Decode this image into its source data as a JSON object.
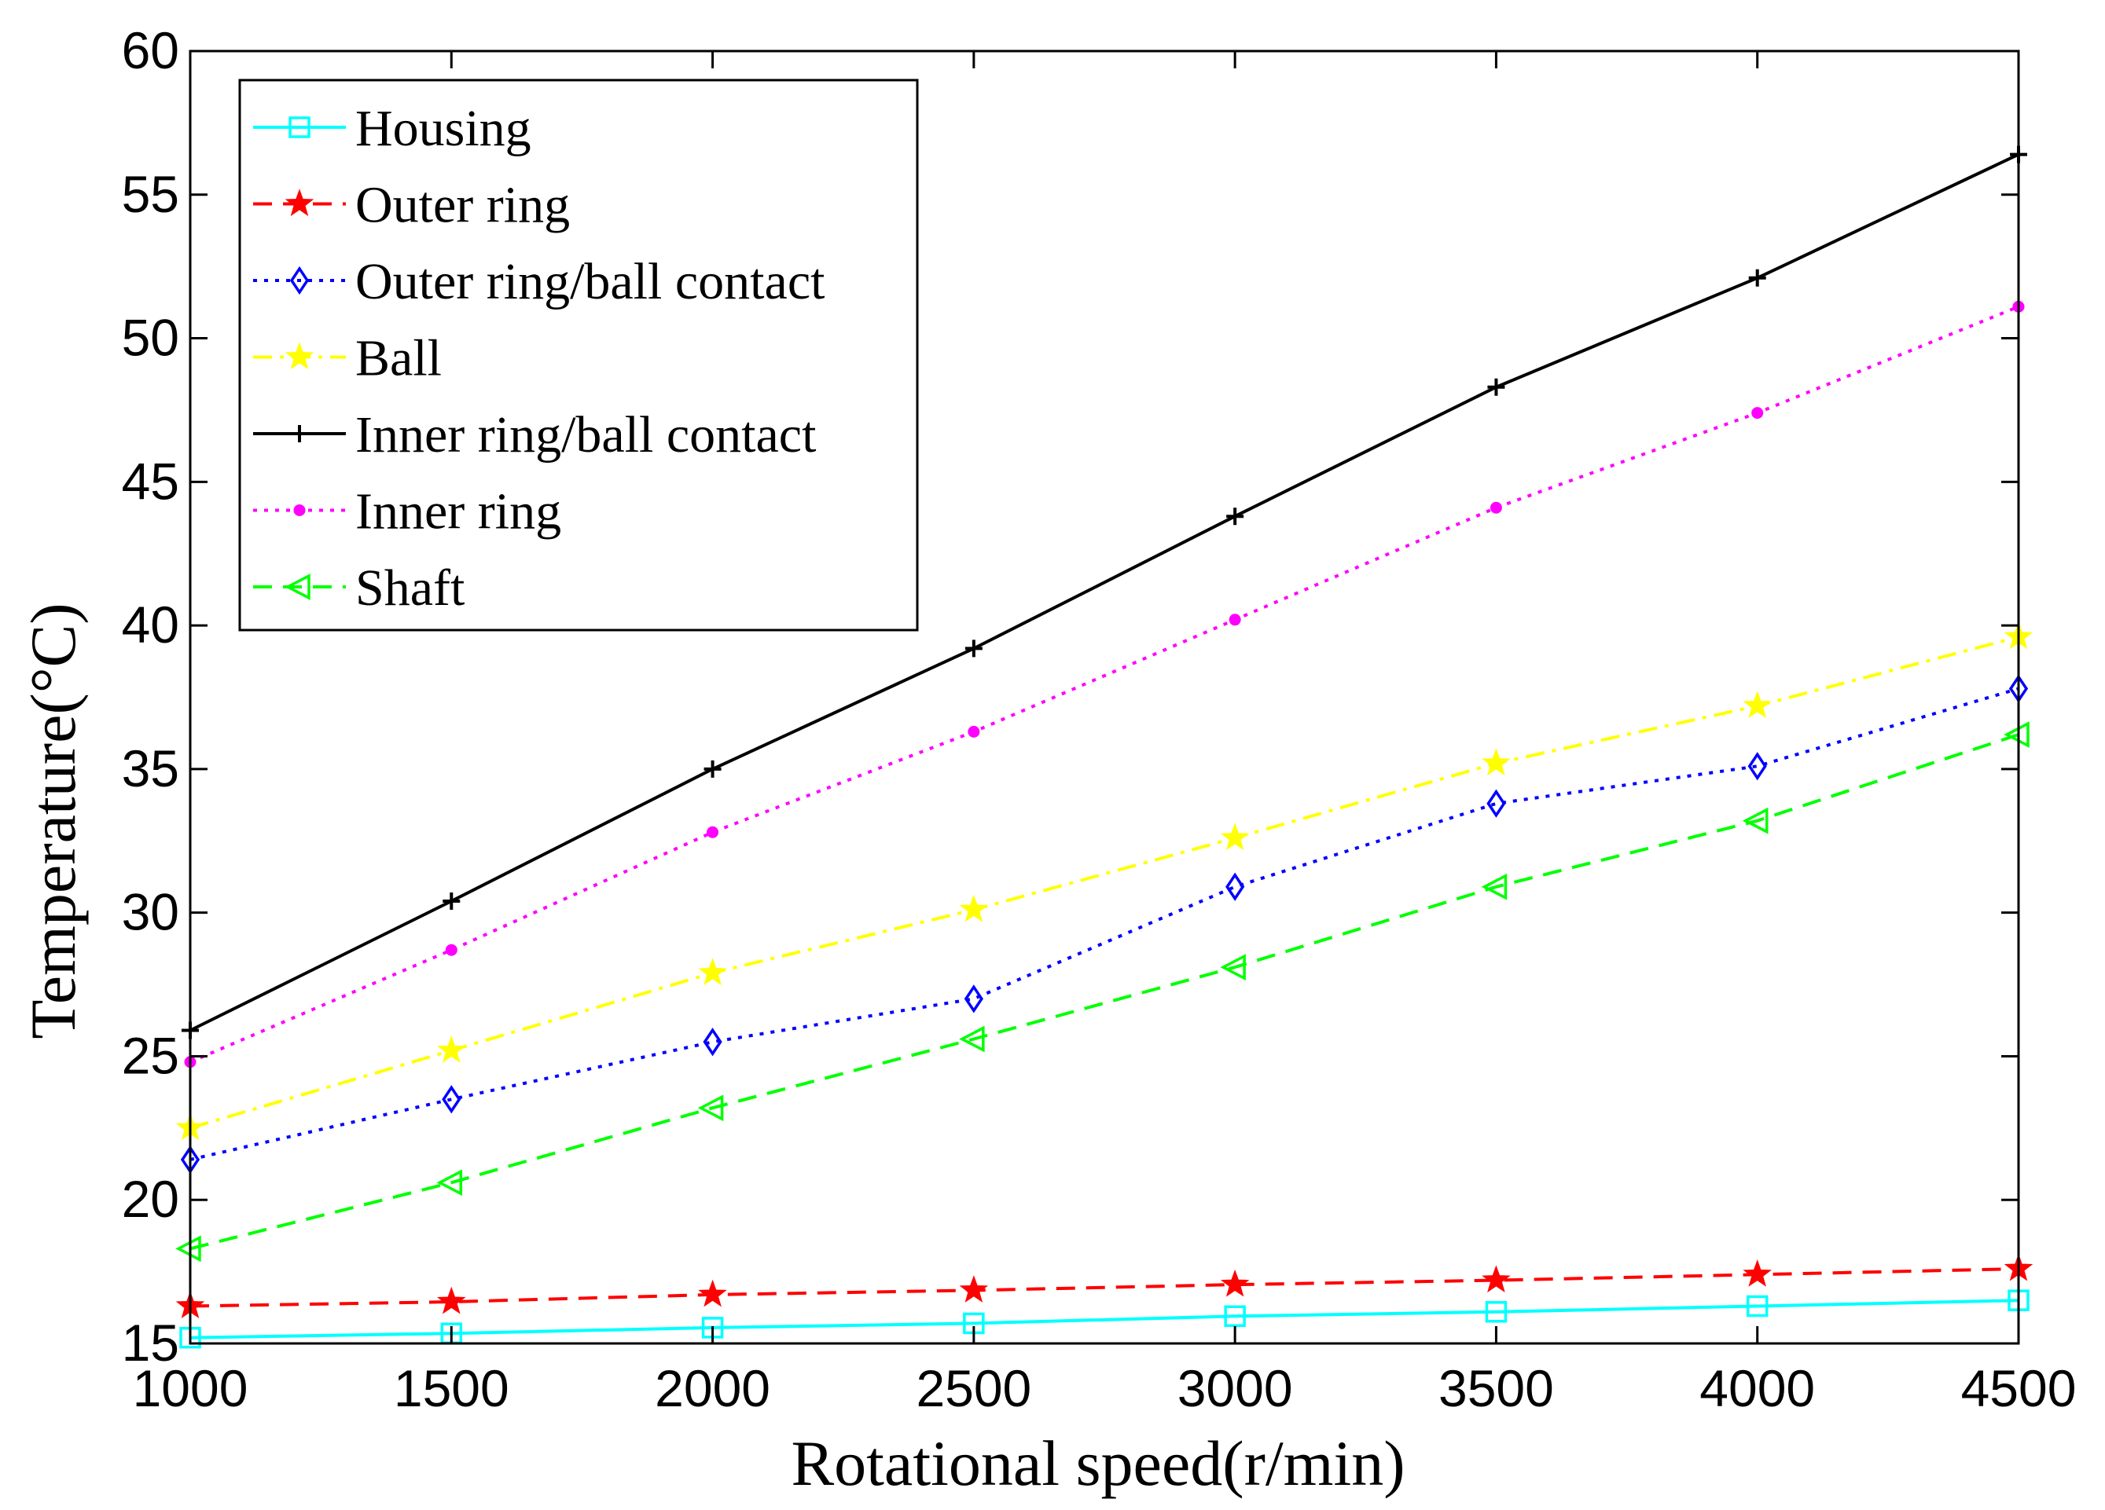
{
  "chart_data": {
    "type": "line",
    "title": "",
    "xlabel": "Rotational speed(r/min)",
    "ylabel": "Temperature(°C)",
    "x": [
      1000,
      1500,
      2000,
      2500,
      3000,
      3500,
      4000,
      4500
    ],
    "xlim": [
      1000,
      4500
    ],
    "ylim": [
      15,
      60
    ],
    "xticks": [
      1000,
      1500,
      2000,
      2500,
      3000,
      3500,
      4000,
      4500
    ],
    "yticks": [
      15,
      20,
      25,
      30,
      35,
      40,
      45,
      50,
      55,
      60
    ],
    "grid": false,
    "legend_position": "top-left",
    "series": [
      {
        "name": "Housing",
        "color": "#00ffff",
        "line_style": "solid",
        "marker": "square",
        "values": [
          15.2,
          15.35,
          15.55,
          15.7,
          15.95,
          16.1,
          16.3,
          16.5
        ]
      },
      {
        "name": "Outer ring",
        "color": "#ff0000",
        "line_style": "dashed",
        "marker": "star",
        "values": [
          16.3,
          16.45,
          16.7,
          16.85,
          17.05,
          17.2,
          17.4,
          17.6
        ]
      },
      {
        "name": "Outer ring/ball contact",
        "color": "#0000ff",
        "line_style": "dotted",
        "marker": "diamond",
        "values": [
          21.4,
          23.5,
          25.5,
          27.0,
          30.9,
          33.8,
          35.1,
          37.8
        ]
      },
      {
        "name": "Ball",
        "color": "#ffff00",
        "line_style": "dashdot",
        "marker": "star",
        "values": [
          22.5,
          25.2,
          27.9,
          30.1,
          32.6,
          35.2,
          37.2,
          39.6
        ]
      },
      {
        "name": "Inner ring/ball contact",
        "color": "#000000",
        "line_style": "solid",
        "marker": "plus",
        "values": [
          25.9,
          30.4,
          35.0,
          39.2,
          43.8,
          48.3,
          52.1,
          56.4
        ]
      },
      {
        "name": "Inner ring",
        "color": "#ff00ff",
        "line_style": "dotted",
        "marker": "dot",
        "values": [
          24.8,
          28.7,
          32.8,
          36.3,
          40.2,
          44.1,
          47.4,
          51.1
        ]
      },
      {
        "name": "Shaft",
        "color": "#00ff00",
        "line_style": "dashed",
        "marker": "triangle-left",
        "values": [
          18.3,
          20.6,
          23.2,
          25.6,
          28.1,
          30.9,
          33.2,
          36.2
        ]
      }
    ]
  }
}
